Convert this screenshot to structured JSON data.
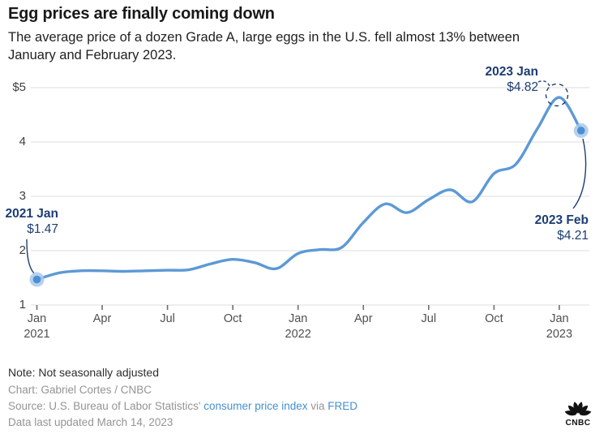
{
  "header": {
    "title": "Egg prices are finally coming down",
    "subtitle": "The average price of a dozen Grade A, large eggs in the U.S. fell almost 13% between January and February 2023."
  },
  "chart_data": {
    "type": "line",
    "x": [
      "Jan 2021",
      "Feb 2021",
      "Mar 2021",
      "Apr 2021",
      "May 2021",
      "Jun 2021",
      "Jul 2021",
      "Aug 2021",
      "Sep 2021",
      "Oct 2021",
      "Nov 2021",
      "Dec 2021",
      "Jan 2022",
      "Feb 2022",
      "Mar 2022",
      "Apr 2022",
      "May 2022",
      "Jun 2022",
      "Jul 2022",
      "Aug 2022",
      "Sep 2022",
      "Oct 2022",
      "Nov 2022",
      "Dec 2022",
      "Jan 2023",
      "Feb 2023"
    ],
    "series": [
      {
        "name": "Average price of a dozen Grade A, large eggs in the U.S.",
        "values": [
          1.47,
          1.59,
          1.63,
          1.63,
          1.62,
          1.63,
          1.64,
          1.65,
          1.76,
          1.84,
          1.78,
          1.67,
          1.95,
          2.02,
          2.06,
          2.52,
          2.86,
          2.7,
          2.94,
          3.12,
          2.9,
          3.42,
          3.59,
          4.25,
          4.82,
          4.21
        ]
      }
    ],
    "ylim": [
      1,
      5
    ],
    "grid": true,
    "legend": "none",
    "line_color": "#5c99d6",
    "point_color": "#4a8ed5",
    "annotation_color": "#1d3d73",
    "y_ticks": [
      {
        "label": "$5",
        "value": 5
      },
      {
        "label": "4",
        "value": 4
      },
      {
        "label": "3",
        "value": 3
      },
      {
        "label": "2",
        "value": 2
      },
      {
        "label": "1",
        "value": 1
      }
    ],
    "x_ticks": [
      {
        "month": "Jan",
        "year": "2021",
        "index": 0
      },
      {
        "month": "Apr",
        "year": "",
        "index": 3
      },
      {
        "month": "Jul",
        "year": "",
        "index": 6
      },
      {
        "month": "Oct",
        "year": "",
        "index": 9
      },
      {
        "month": "Jan",
        "year": "2022",
        "index": 12
      },
      {
        "month": "Apr",
        "year": "",
        "index": 15
      },
      {
        "month": "Jul",
        "year": "",
        "index": 18
      },
      {
        "month": "Oct",
        "year": "",
        "index": 21
      },
      {
        "month": "Jan",
        "year": "2023",
        "index": 24
      }
    ],
    "annotations": [
      {
        "id": "start",
        "date": "2021 Jan",
        "price": "$1.47"
      },
      {
        "id": "peak",
        "date": "2023 Jan",
        "price": "$4.82"
      },
      {
        "id": "end",
        "date": "2023 Feb",
        "price": "$4.21"
      }
    ]
  },
  "footer": {
    "note": "Note: Not seasonally adjusted",
    "credit": "Chart: Gabriel Cortes / CNBC",
    "source_segments": [
      {
        "text": "Source: U.S. Bureau of Labor Statistics' ",
        "link": false
      },
      {
        "text": "consumer price index",
        "link": true
      },
      {
        "text": " via ",
        "link": false
      },
      {
        "text": "FRED",
        "link": true
      }
    ],
    "updated": "Data last updated March 14, 2023",
    "logo": "CNBC"
  }
}
